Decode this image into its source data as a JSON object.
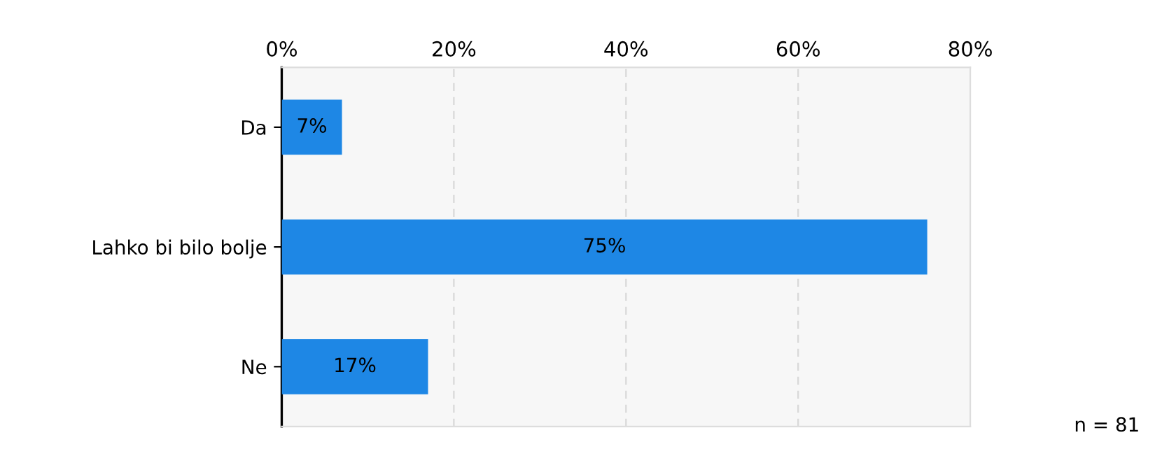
{
  "chart_data": {
    "type": "bar",
    "orientation": "horizontal",
    "categories": [
      "Da",
      "Lahko bi bilo bolje",
      "Ne"
    ],
    "values": [
      7,
      75,
      17
    ],
    "value_labels": [
      "7%",
      "75%",
      "17%"
    ],
    "color": "#1e87e5",
    "xlim": [
      0,
      80
    ],
    "xticks": [
      {
        "value": 0,
        "label": "0%"
      },
      {
        "value": 20,
        "label": "20%"
      },
      {
        "value": 40,
        "label": "40%"
      },
      {
        "value": 60,
        "label": "60%"
      },
      {
        "value": 80,
        "label": "80%"
      }
    ],
    "grid": "x",
    "annotations": [
      "n = 81"
    ]
  }
}
